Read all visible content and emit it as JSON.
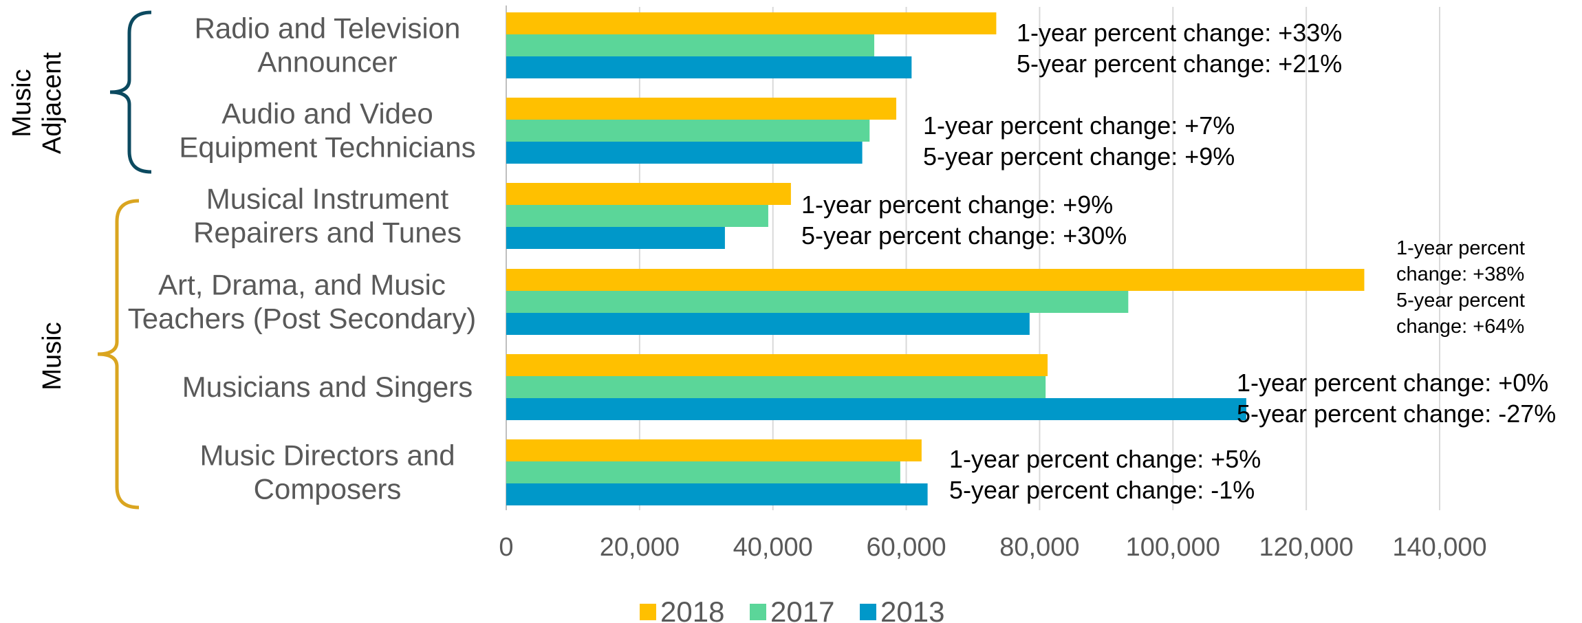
{
  "chart_data": {
    "type": "bar",
    "orientation": "horizontal",
    "categories": [
      [
        "Radio and Television",
        "Announcer"
      ],
      [
        "Audio and Video",
        "Equipment Technicians"
      ],
      [
        "Musical Instrument",
        "Repairers and Tunes"
      ],
      [
        "Art, Drama, and Music",
        "Teachers (Post Secondary)"
      ],
      [
        "Musicians and Singers"
      ],
      [
        "Music Directors and",
        "Composers"
      ]
    ],
    "series": [
      {
        "name": "2018",
        "color": "#FFC000",
        "values": [
          73500,
          58500,
          42700,
          128700,
          81200,
          62300
        ]
      },
      {
        "name": "2017",
        "color": "#5BD699",
        "values": [
          55200,
          54500,
          39300,
          93300,
          80900,
          59100
        ]
      },
      {
        "name": "2013",
        "color": "#0098C9",
        "values": [
          60800,
          53400,
          32800,
          78500,
          111000,
          63200
        ]
      }
    ],
    "annotations": [
      [
        "1-year percent change: +33%",
        "5-year percent change: +21%"
      ],
      [
        "1-year percent change: +7%",
        "5-year percent change: +9%"
      ],
      [
        "1-year percent change: +9%",
        "5-year percent change: +30%"
      ],
      [
        "1-year percent",
        "change: +38%",
        "5-year percent",
        "change: +64%"
      ],
      [
        "1-year percent change: +0%",
        "5-year percent change: -27%"
      ],
      [
        "1-year percent change: +5%",
        "5-year percent change: -1%"
      ]
    ],
    "groups": [
      {
        "label": [
          "Music",
          "Adjacent"
        ],
        "color": "#0C4A60"
      },
      {
        "label": [
          "Music"
        ],
        "color": "#DAA520"
      }
    ],
    "xlim": [
      0,
      140000
    ],
    "xticks": [
      "0",
      "20,000",
      "40,000",
      "60,000",
      "80,000",
      "100,000",
      "120,000",
      "140,000"
    ],
    "grid": "vertical",
    "legend": "bottom"
  }
}
